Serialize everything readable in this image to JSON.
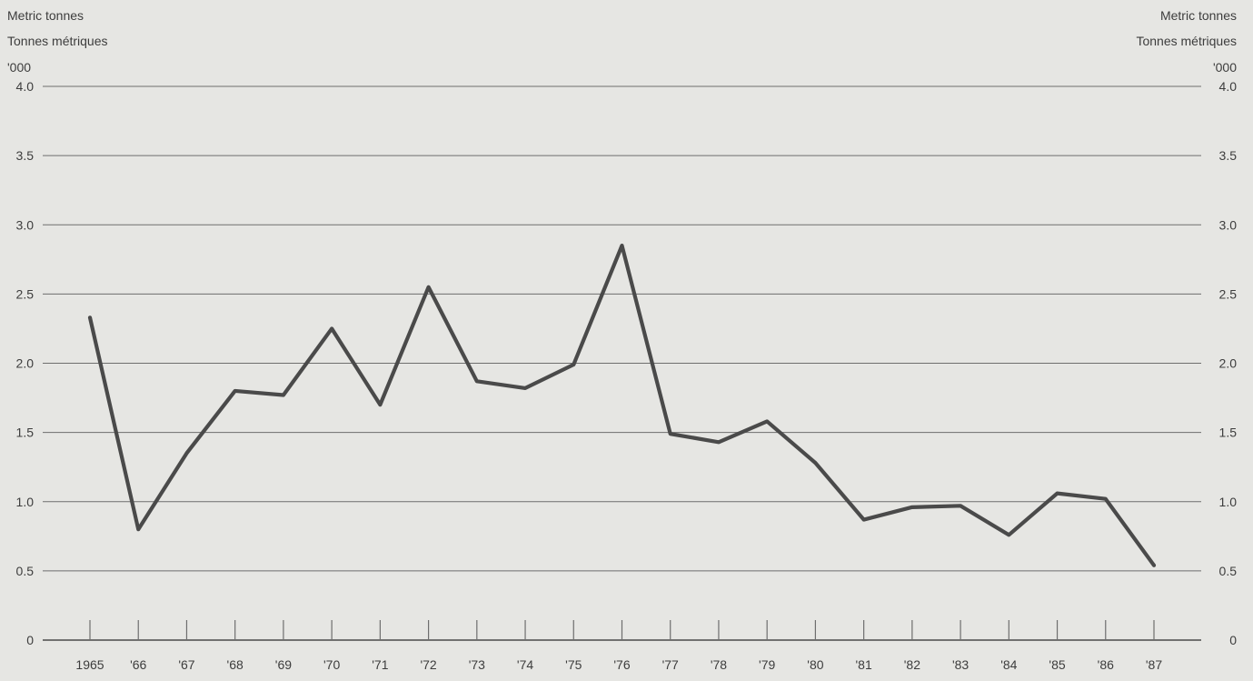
{
  "chart_data": {
    "type": "line",
    "left_axis_unit_lines": [
      "Metric tonnes",
      "Tonnes métriques",
      "'000"
    ],
    "right_axis_unit_lines": [
      "Metric tonnes",
      "Tonnes métriques",
      "'000"
    ],
    "x_tick_labels": [
      "1965",
      "'66",
      "'67",
      "'68",
      "'69",
      "'70",
      "'71",
      "'72",
      "'73",
      "'74",
      "'75",
      "'76",
      "'77",
      "'78",
      "'79",
      "'80",
      "'81",
      "'82",
      "'83",
      "'84",
      "'85",
      "'86",
      "'87"
    ],
    "x": [
      1965,
      1966,
      1967,
      1968,
      1969,
      1970,
      1971,
      1972,
      1973,
      1974,
      1975,
      1976,
      1977,
      1978,
      1979,
      1980,
      1981,
      1982,
      1983,
      1984,
      1985,
      1986,
      1987
    ],
    "values": [
      2.33,
      0.8,
      1.35,
      1.8,
      1.77,
      2.25,
      1.7,
      2.55,
      1.87,
      1.82,
      1.99,
      2.85,
      1.49,
      1.43,
      1.58,
      1.28,
      0.87,
      0.96,
      0.97,
      0.76,
      1.06,
      1.02,
      0.54
    ],
    "ylim": [
      0,
      4.0
    ],
    "y_ticks": [
      0,
      0.5,
      1.0,
      1.5,
      2.0,
      2.5,
      3.0,
      3.5,
      4.0
    ],
    "y_tick_labels": [
      "0",
      "0.5",
      "1.0",
      "1.5",
      "2.0",
      "2.5",
      "3.0",
      "3.5",
      "4.0"
    ],
    "grid": true,
    "colors": {
      "background": "#e6e6e3",
      "line": "#4a4a4a",
      "grid": "#6e6e6e",
      "text": "#3d3d3d"
    }
  }
}
